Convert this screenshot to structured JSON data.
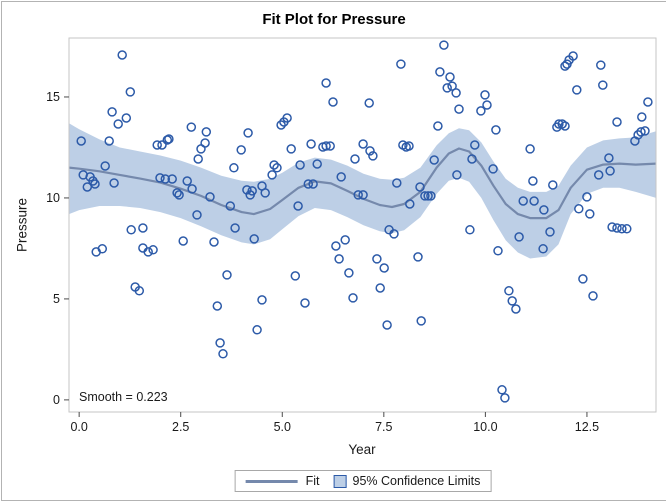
{
  "title": "Fit Plot for Pressure",
  "annotation": "Smooth = 0.223",
  "legend": {
    "fit_label": "Fit",
    "cl_label": "95% Confidence Limits"
  },
  "x_axis": {
    "label": "Year",
    "ticks": [
      "0.0",
      "2.5",
      "5.0",
      "7.5",
      "10.0",
      "12.5"
    ],
    "tick_values": [
      0,
      2.5,
      5,
      7.5,
      10,
      12.5
    ]
  },
  "y_axis": {
    "label": "Pressure",
    "ticks": [
      "0",
      "5",
      "10",
      "15"
    ],
    "tick_values": [
      0,
      5,
      10,
      15
    ]
  },
  "colors": {
    "marker": "#2c5aa8",
    "fit_line": "#7589ac",
    "band_fill": "#bdcfe6",
    "frame": "#c6c6c6",
    "tick": "#4a4a4a",
    "text": "#1a1a1a"
  },
  "chart_data": {
    "type": "scatter",
    "title": "Fit Plot for Pressure",
    "xlabel": "Year",
    "ylabel": "Pressure",
    "xlim": [
      -0.25,
      14.2
    ],
    "ylim": [
      -0.6,
      17.92
    ],
    "grid": false,
    "legend_position": "bottom",
    "smooth_value": 0.223,
    "series": [
      {
        "name": "observations",
        "type": "scatter",
        "points": [
          [
            1.06,
            17.08
          ],
          [
            1.26,
            15.25
          ],
          [
            0.81,
            14.26
          ],
          [
            0.96,
            13.66
          ],
          [
            1.16,
            13.96
          ],
          [
            0.05,
            12.82
          ],
          [
            0.74,
            12.82
          ],
          [
            2.76,
            13.51
          ],
          [
            3.13,
            13.27
          ],
          [
            3.0,
            12.43
          ],
          [
            3.1,
            12.72
          ],
          [
            4.16,
            13.22
          ],
          [
            3.99,
            12.38
          ],
          [
            1.92,
            12.62
          ],
          [
            2.04,
            12.62
          ],
          [
            2.17,
            12.87
          ],
          [
            2.21,
            12.92
          ],
          [
            2.93,
            11.93
          ],
          [
            3.81,
            11.49
          ],
          [
            0.64,
            11.58
          ],
          [
            0.1,
            11.14
          ],
          [
            0.27,
            11.04
          ],
          [
            0.34,
            10.84
          ],
          [
            0.2,
            10.54
          ],
          [
            0.39,
            10.69
          ],
          [
            0.86,
            10.74
          ],
          [
            1.99,
            10.99
          ],
          [
            2.12,
            10.94
          ],
          [
            2.29,
            10.94
          ],
          [
            2.41,
            10.25
          ],
          [
            2.46,
            10.15
          ],
          [
            2.66,
            10.84
          ],
          [
            2.78,
            10.45
          ],
          [
            3.22,
            10.05
          ],
          [
            3.72,
            9.6
          ],
          [
            4.13,
            10.4
          ],
          [
            4.26,
            10.35
          ],
          [
            4.21,
            10.15
          ],
          [
            2.9,
            9.16
          ],
          [
            8.98,
            17.57
          ],
          [
            7.92,
            16.63
          ],
          [
            8.88,
            16.24
          ],
          [
            9.13,
            15.99
          ],
          [
            9.06,
            15.45
          ],
          [
            9.18,
            15.54
          ],
          [
            9.28,
            15.2
          ],
          [
            6.08,
            15.69
          ],
          [
            6.25,
            14.75
          ],
          [
            7.14,
            14.7
          ],
          [
            9.35,
            14.4
          ],
          [
            4.97,
            13.61
          ],
          [
            5.12,
            13.96
          ],
          [
            5.04,
            13.76
          ],
          [
            8.83,
            13.56
          ],
          [
            5.22,
            12.43
          ],
          [
            5.71,
            12.67
          ],
          [
            6.0,
            12.52
          ],
          [
            6.08,
            12.57
          ],
          [
            6.18,
            12.57
          ],
          [
            7.97,
            12.62
          ],
          [
            8.05,
            12.52
          ],
          [
            8.12,
            12.57
          ],
          [
            6.99,
            12.67
          ],
          [
            7.16,
            12.33
          ],
          [
            6.79,
            11.93
          ],
          [
            7.23,
            12.08
          ],
          [
            4.8,
            11.63
          ],
          [
            4.87,
            11.49
          ],
          [
            5.44,
            11.63
          ],
          [
            5.86,
            11.68
          ],
          [
            8.74,
            11.88
          ],
          [
            5.64,
            10.69
          ],
          [
            5.76,
            10.69
          ],
          [
            4.75,
            11.14
          ],
          [
            4.5,
            10.59
          ],
          [
            4.58,
            10.25
          ],
          [
            6.45,
            11.04
          ],
          [
            6.87,
            10.15
          ],
          [
            6.99,
            10.15
          ],
          [
            7.82,
            10.74
          ],
          [
            8.14,
            9.7
          ],
          [
            8.39,
            10.54
          ],
          [
            8.51,
            10.1
          ],
          [
            8.59,
            10.1
          ],
          [
            8.66,
            10.1
          ],
          [
            5.39,
            9.6
          ],
          [
            9.3,
            11.14
          ],
          [
            12.16,
            17.03
          ],
          [
            12.06,
            16.83
          ],
          [
            11.96,
            16.53
          ],
          [
            12.01,
            16.63
          ],
          [
            12.84,
            16.58
          ],
          [
            12.89,
            15.59
          ],
          [
            12.25,
            15.35
          ],
          [
            9.99,
            15.1
          ],
          [
            10.04,
            14.6
          ],
          [
            9.89,
            14.31
          ],
          [
            14.0,
            14.75
          ],
          [
            13.85,
            14.01
          ],
          [
            11.76,
            13.51
          ],
          [
            11.81,
            13.66
          ],
          [
            11.89,
            13.66
          ],
          [
            11.96,
            13.56
          ],
          [
            13.24,
            13.76
          ],
          [
            10.26,
            13.37
          ],
          [
            13.83,
            13.27
          ],
          [
            13.93,
            13.32
          ],
          [
            13.68,
            12.82
          ],
          [
            13.76,
            13.12
          ],
          [
            9.74,
            12.62
          ],
          [
            11.1,
            12.43
          ],
          [
            9.67,
            11.93
          ],
          [
            10.19,
            11.44
          ],
          [
            13.04,
            11.98
          ],
          [
            13.07,
            11.34
          ],
          [
            12.79,
            11.14
          ],
          [
            11.17,
            10.84
          ],
          [
            11.66,
            10.64
          ],
          [
            10.93,
            9.85
          ],
          [
            11.2,
            9.85
          ],
          [
            12.5,
            10.05
          ],
          [
            12.3,
            9.46
          ],
          [
            12.57,
            9.21
          ],
          [
            11.44,
            9.41
          ],
          [
            13.12,
            8.56
          ],
          [
            13.24,
            8.51
          ],
          [
            13.36,
            8.47
          ],
          [
            13.48,
            8.47
          ],
          [
            1.28,
            8.42
          ],
          [
            1.57,
            8.51
          ],
          [
            0.42,
            7.33
          ],
          [
            0.57,
            7.48
          ],
          [
            1.57,
            7.52
          ],
          [
            1.7,
            7.33
          ],
          [
            1.82,
            7.43
          ],
          [
            2.56,
            7.87
          ],
          [
            3.32,
            7.82
          ],
          [
            4.31,
            7.97
          ],
          [
            3.84,
            8.51
          ],
          [
            3.64,
            6.19
          ],
          [
            1.38,
            5.59
          ],
          [
            1.48,
            5.4
          ],
          [
            3.4,
            4.65
          ],
          [
            4.38,
            3.47
          ],
          [
            3.47,
            2.82
          ],
          [
            3.54,
            2.28
          ],
          [
            7.63,
            8.42
          ],
          [
            7.75,
            8.22
          ],
          [
            6.32,
            7.62
          ],
          [
            6.55,
            7.92
          ],
          [
            6.4,
            6.98
          ],
          [
            7.33,
            6.98
          ],
          [
            7.51,
            6.53
          ],
          [
            8.34,
            7.08
          ],
          [
            6.64,
            6.29
          ],
          [
            5.32,
            6.14
          ],
          [
            4.5,
            4.95
          ],
          [
            5.56,
            4.8
          ],
          [
            6.74,
            5.05
          ],
          [
            7.41,
            5.54
          ],
          [
            7.58,
            3.71
          ],
          [
            8.42,
            3.91
          ],
          [
            9.62,
            8.42
          ],
          [
            10.83,
            8.07
          ],
          [
            11.59,
            8.32
          ],
          [
            10.31,
            7.38
          ],
          [
            11.42,
            7.48
          ],
          [
            12.4,
            5.99
          ],
          [
            12.65,
            5.15
          ],
          [
            10.58,
            5.4
          ],
          [
            10.66,
            4.9
          ],
          [
            10.75,
            4.5
          ],
          [
            10.41,
            0.5
          ],
          [
            10.48,
            0.1
          ]
        ]
      },
      {
        "name": "Fit",
        "type": "line",
        "points": [
          [
            -0.25,
            11.5
          ],
          [
            0,
            11.45
          ],
          [
            0.5,
            11.32
          ],
          [
            1,
            11.14
          ],
          [
            1.5,
            10.96
          ],
          [
            2,
            10.76
          ],
          [
            2.5,
            10.46
          ],
          [
            3,
            10.1
          ],
          [
            3.5,
            9.65
          ],
          [
            4,
            9.3
          ],
          [
            4.3,
            9.2
          ],
          [
            4.7,
            9.45
          ],
          [
            5,
            9.9
          ],
          [
            5.4,
            10.5
          ],
          [
            5.8,
            10.82
          ],
          [
            6.2,
            10.72
          ],
          [
            6.6,
            10.35
          ],
          [
            7,
            9.95
          ],
          [
            7.4,
            9.65
          ],
          [
            7.7,
            9.55
          ],
          [
            8,
            9.7
          ],
          [
            8.4,
            10.3
          ],
          [
            8.8,
            11.5
          ],
          [
            9.1,
            12.2
          ],
          [
            9.35,
            12.45
          ],
          [
            9.6,
            12.3
          ],
          [
            9.9,
            11.6
          ],
          [
            10.2,
            10.6
          ],
          [
            10.5,
            9.7
          ],
          [
            10.8,
            9.2
          ],
          [
            11.1,
            9.0
          ],
          [
            11.5,
            9.0
          ],
          [
            11.8,
            9.4
          ],
          [
            12.1,
            10.5
          ],
          [
            12.5,
            11.4
          ],
          [
            12.9,
            11.65
          ],
          [
            13.3,
            11.7
          ],
          [
            13.7,
            11.65
          ],
          [
            14.2,
            11.7
          ]
        ]
      },
      {
        "name": "95% Confidence Limits",
        "type": "band",
        "upper": [
          [
            -0.25,
            13.7
          ],
          [
            0,
            13.4
          ],
          [
            0.5,
            12.9
          ],
          [
            1,
            12.5
          ],
          [
            1.5,
            12.3
          ],
          [
            2,
            12.1
          ],
          [
            2.5,
            11.85
          ],
          [
            3,
            11.5
          ],
          [
            3.5,
            11.1
          ],
          [
            4,
            10.85
          ],
          [
            4.3,
            10.8
          ],
          [
            4.7,
            10.95
          ],
          [
            5,
            11.25
          ],
          [
            5.4,
            11.75
          ],
          [
            5.8,
            12.0
          ],
          [
            6.2,
            11.9
          ],
          [
            6.6,
            11.6
          ],
          [
            7,
            11.2
          ],
          [
            7.4,
            10.95
          ],
          [
            7.7,
            10.9
          ],
          [
            8,
            11.0
          ],
          [
            8.4,
            11.5
          ],
          [
            8.8,
            12.6
          ],
          [
            9.1,
            13.2
          ],
          [
            9.35,
            13.45
          ],
          [
            9.6,
            13.35
          ],
          [
            9.9,
            12.75
          ],
          [
            10.2,
            11.8
          ],
          [
            10.5,
            10.95
          ],
          [
            10.8,
            10.5
          ],
          [
            11.1,
            10.3
          ],
          [
            11.5,
            10.3
          ],
          [
            11.8,
            10.6
          ],
          [
            12.1,
            11.6
          ],
          [
            12.5,
            12.5
          ],
          [
            12.9,
            12.85
          ],
          [
            13.3,
            12.95
          ],
          [
            13.7,
            13.0
          ],
          [
            14.2,
            13.3
          ]
        ],
        "lower": [
          [
            -0.25,
            9.2
          ],
          [
            0,
            9.4
          ],
          [
            0.5,
            9.6
          ],
          [
            1,
            9.6
          ],
          [
            1.5,
            9.5
          ],
          [
            2,
            9.3
          ],
          [
            2.5,
            9.0
          ],
          [
            3,
            8.6
          ],
          [
            3.5,
            8.15
          ],
          [
            4,
            7.8
          ],
          [
            4.3,
            7.7
          ],
          [
            4.7,
            7.95
          ],
          [
            5,
            8.45
          ],
          [
            5.4,
            9.1
          ],
          [
            5.8,
            9.5
          ],
          [
            6.2,
            9.4
          ],
          [
            6.6,
            9.05
          ],
          [
            7,
            8.65
          ],
          [
            7.4,
            8.35
          ],
          [
            7.7,
            8.25
          ],
          [
            8,
            8.4
          ],
          [
            8.4,
            9.05
          ],
          [
            8.8,
            10.2
          ],
          [
            9.1,
            10.85
          ],
          [
            9.35,
            11.0
          ],
          [
            9.6,
            10.8
          ],
          [
            9.9,
            10.0
          ],
          [
            10.2,
            8.9
          ],
          [
            10.5,
            7.9
          ],
          [
            10.8,
            7.3
          ],
          [
            11.1,
            7.0
          ],
          [
            11.5,
            7.1
          ],
          [
            11.8,
            7.7
          ],
          [
            12.1,
            9.2
          ],
          [
            12.5,
            10.2
          ],
          [
            12.9,
            10.5
          ],
          [
            13.3,
            10.5
          ],
          [
            13.7,
            10.3
          ],
          [
            14.2,
            10.0
          ]
        ]
      }
    ]
  }
}
